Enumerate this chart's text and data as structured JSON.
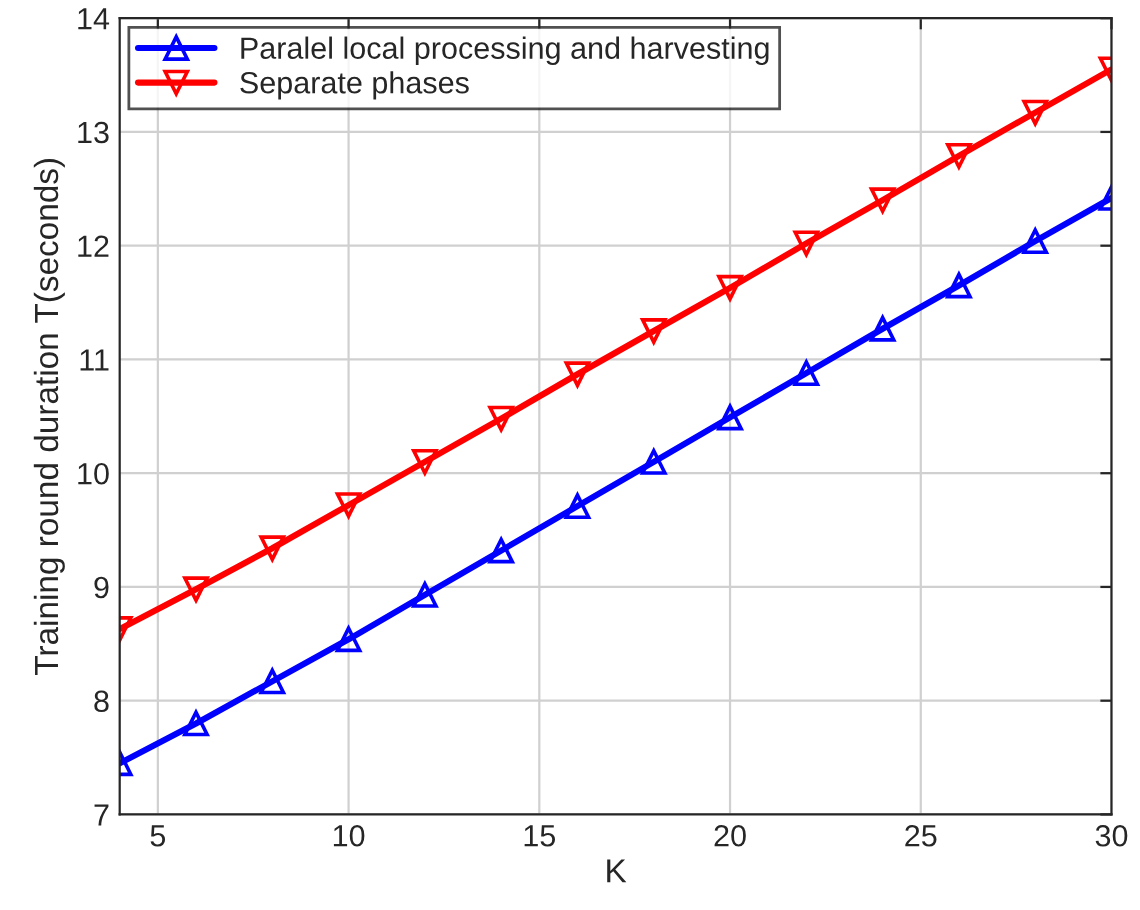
{
  "chart_data": {
    "type": "line",
    "xlabel": "K",
    "ylabel": "Training round duration T(seconds)",
    "x": [
      4,
      6,
      8,
      10,
      12,
      14,
      16,
      18,
      20,
      22,
      24,
      26,
      28,
      30
    ],
    "series": [
      {
        "name": "Paralel local processing and harvesting",
        "color": "#0000ff",
        "marker": "triangle",
        "values": [
          7.45,
          7.8,
          8.17,
          8.54,
          8.93,
          9.32,
          9.71,
          10.1,
          10.49,
          10.88,
          11.27,
          11.65,
          12.04,
          12.42
        ]
      },
      {
        "name": "Separate phases",
        "color": "#ff0000",
        "marker": "triangle_down",
        "values": [
          8.63,
          8.98,
          9.34,
          9.72,
          10.1,
          10.48,
          10.87,
          11.25,
          11.63,
          12.02,
          12.4,
          12.79,
          13.17,
          13.55
        ]
      }
    ],
    "xlim": [
      4,
      30
    ],
    "xticks": [
      5,
      10,
      15,
      20,
      25,
      30
    ],
    "ylim": [
      7,
      14
    ],
    "yticks": [
      7,
      8,
      9,
      10,
      11,
      12,
      13,
      14
    ],
    "grid": true,
    "legend": "top left",
    "line_style": "solid"
  }
}
